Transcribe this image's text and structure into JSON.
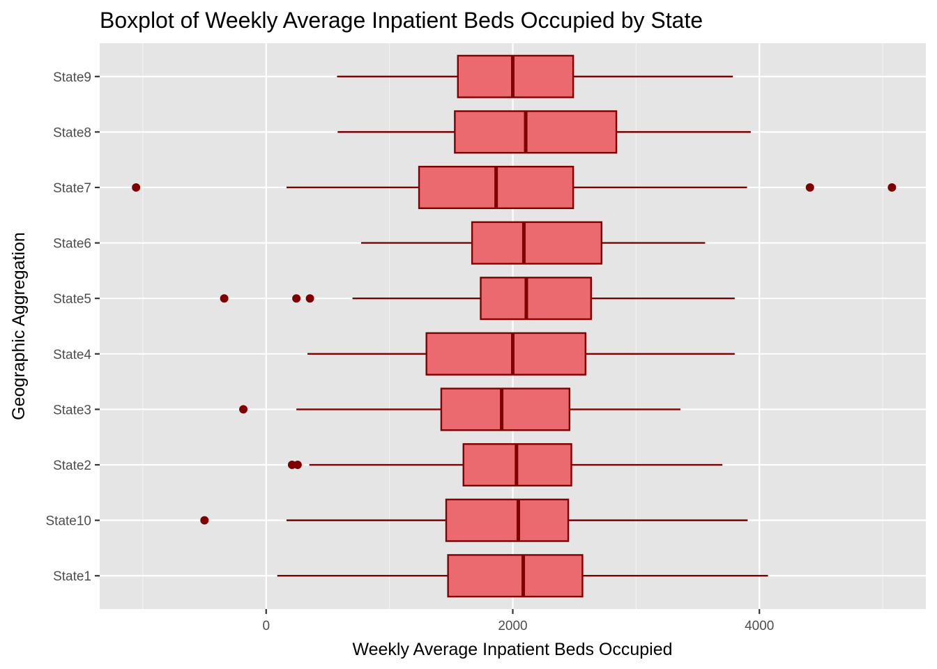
{
  "chart_data": {
    "type": "boxplot",
    "orientation": "horizontal",
    "title": "Boxplot of Weekly Average Inpatient Beds Occupied by State",
    "xlabel": "Weekly Average Inpatient Beds Occupied",
    "ylabel": "Geographic Aggregation",
    "xlim": [
      -1350,
      5350
    ],
    "x_ticks": [
      0,
      2000,
      4000
    ],
    "x_tick_labels": [
      "0",
      "2000",
      "4000"
    ],
    "categories": [
      "State1",
      "State10",
      "State2",
      "State3",
      "State4",
      "State5",
      "State6",
      "State7",
      "State8",
      "State9"
    ],
    "boxes": [
      {
        "category": "State1",
        "whisker_low": 90,
        "q1": 1475,
        "median": 2085,
        "q3": 2565,
        "whisker_high": 4070,
        "outliers": []
      },
      {
        "category": "State10",
        "whisker_low": 165,
        "q1": 1460,
        "median": 2045,
        "q3": 2450,
        "whisker_high": 3905,
        "outliers": [
          -500
        ]
      },
      {
        "category": "State2",
        "whisker_low": 350,
        "q1": 1600,
        "median": 2030,
        "q3": 2475,
        "whisker_high": 3700,
        "outliers": [
          210,
          255
        ]
      },
      {
        "category": "State3",
        "whisker_low": 245,
        "q1": 1420,
        "median": 1910,
        "q3": 2460,
        "whisker_high": 3360,
        "outliers": [
          -185
        ]
      },
      {
        "category": "State4",
        "whisker_low": 335,
        "q1": 1300,
        "median": 2000,
        "q3": 2590,
        "whisker_high": 3800,
        "outliers": []
      },
      {
        "category": "State5",
        "whisker_low": 700,
        "q1": 1740,
        "median": 2110,
        "q3": 2635,
        "whisker_high": 3800,
        "outliers": [
          -340,
          245,
          355
        ]
      },
      {
        "category": "State6",
        "whisker_low": 770,
        "q1": 1670,
        "median": 2090,
        "q3": 2720,
        "whisker_high": 3560,
        "outliers": []
      },
      {
        "category": "State7",
        "whisker_low": 165,
        "q1": 1240,
        "median": 1865,
        "q3": 2490,
        "whisker_high": 3900,
        "outliers": [
          -1055,
          4410,
          5075
        ]
      },
      {
        "category": "State8",
        "whisker_low": 580,
        "q1": 1530,
        "median": 2105,
        "q3": 2840,
        "whisker_high": 3930,
        "outliers": []
      },
      {
        "category": "State9",
        "whisker_low": 575,
        "q1": 1555,
        "median": 2000,
        "q3": 2490,
        "whisker_high": 3785,
        "outliers": []
      }
    ],
    "grid": true,
    "legend": "none",
    "colors": {
      "panel_background": "#e5e5e5",
      "grid_major": "#ffffff",
      "grid_minor": "#f2f2f2",
      "box_fill": "#eb6a70",
      "box_outline": "#7f0000",
      "outlier": "#7f0000",
      "tick_label": "#4d4d4d",
      "tick_mark": "#333333"
    }
  }
}
